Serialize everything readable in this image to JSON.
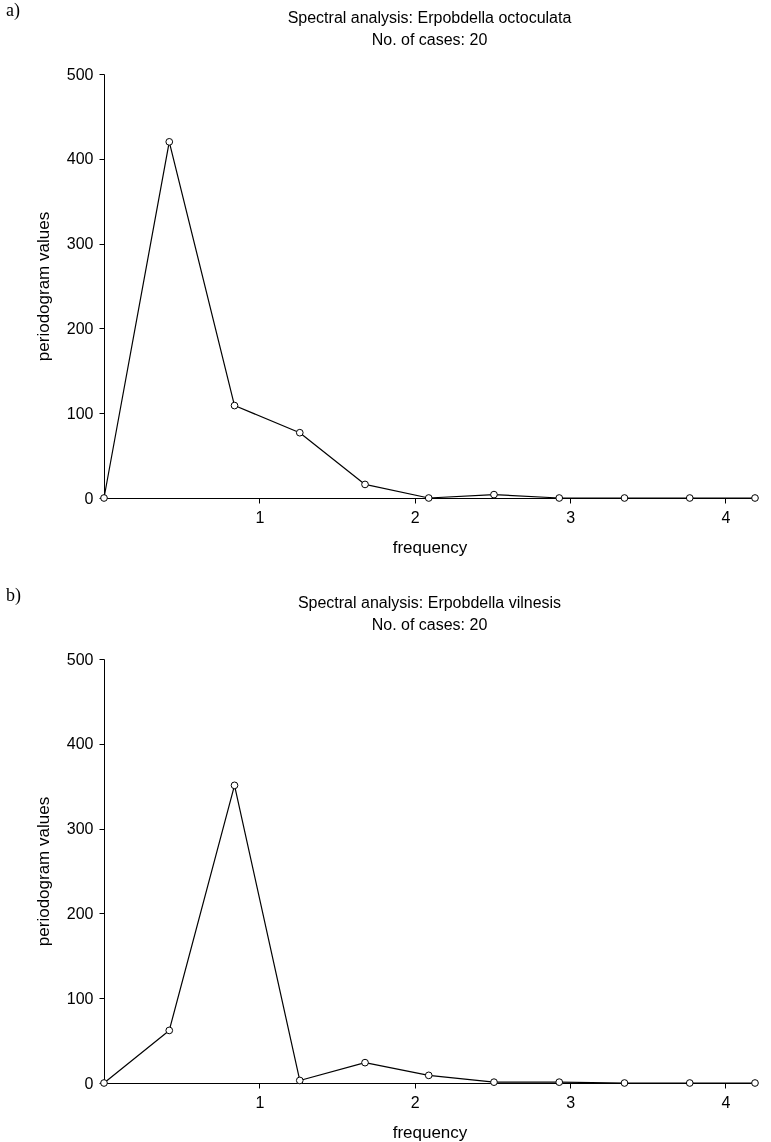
{
  "chart_data": [
    {
      "type": "line",
      "title": "Spectral analysis: Erpobdella octoculata",
      "subtitle": "No. of cases: 20",
      "xlabel": "frequency",
      "ylabel": "periodogram values",
      "annotations": [
        "a)"
      ],
      "x": [
        0,
        0.42,
        0.84,
        1.26,
        1.68,
        2.09,
        2.51,
        2.93,
        3.35,
        3.77,
        4.19
      ],
      "series": [
        {
          "color": "#000000",
          "values": [
            0,
            420,
            109,
            77,
            16,
            0,
            4,
            0,
            0,
            0,
            0
          ]
        }
      ],
      "xlim": [
        0,
        4.19
      ],
      "xticks": [
        1,
        2,
        3,
        4
      ],
      "ylim": [
        0,
        500
      ],
      "yticks": [
        0,
        100,
        200,
        300,
        400,
        500
      ],
      "grid": false,
      "legend": false,
      "marker": "circle",
      "line_style": "solid"
    },
    {
      "type": "line",
      "title": "Spectral analysis: Erpobdella vilnesis",
      "subtitle": "No. of cases: 20",
      "xlabel": "frequency",
      "ylabel": "periodogram values",
      "annotations": [
        "b)"
      ],
      "x": [
        0,
        0.42,
        0.84,
        1.26,
        1.68,
        2.09,
        2.51,
        2.93,
        3.35,
        3.77,
        4.19
      ],
      "series": [
        {
          "color": "#000000",
          "values": [
            0,
            62,
            351,
            3,
            24,
            9,
            1,
            1,
            0,
            0,
            0
          ]
        }
      ],
      "xlim": [
        0,
        4.19
      ],
      "xticks": [
        1,
        2,
        3,
        4
      ],
      "ylim": [
        0,
        500
      ],
      "yticks": [
        0,
        100,
        200,
        300,
        400,
        500
      ],
      "grid": false,
      "legend": false,
      "marker": "circle",
      "line_style": "solid"
    }
  ]
}
